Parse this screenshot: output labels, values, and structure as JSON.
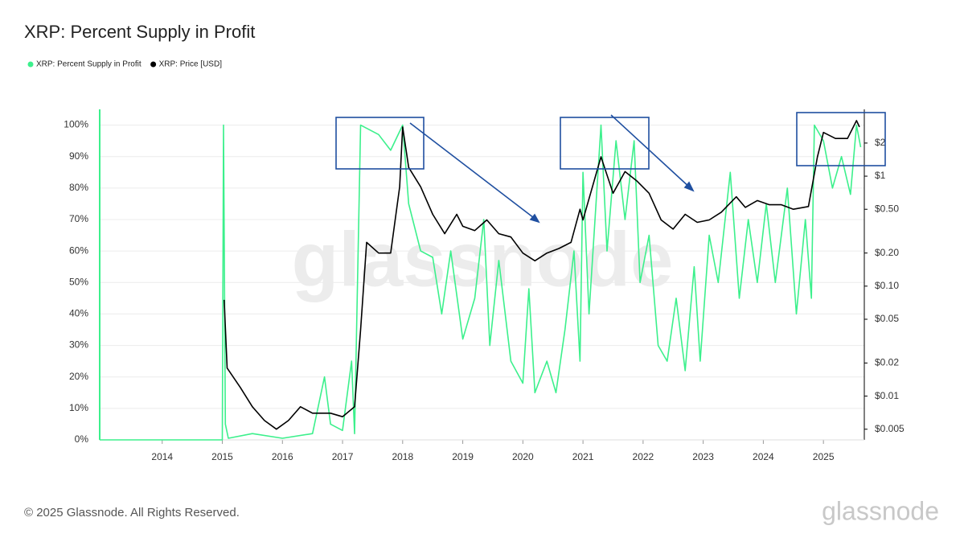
{
  "chart_data": {
    "type": "line",
    "title": "XRP: Percent Supply in Profit",
    "watermark": "glassnode",
    "footer": "© 2025 Glassnode. All Rights Reserved.",
    "logo": "glassnode",
    "legend": "top-left",
    "grid": true,
    "xlim": [
      2012.96,
      2025.68
    ],
    "xticks": [
      2014,
      2015,
      2016,
      2017,
      2018,
      2019,
      2020,
      2021,
      2022,
      2023,
      2024,
      2025
    ],
    "ylim": [
      0,
      105
    ],
    "yticks": [
      {
        "value": 0,
        "label": "0%"
      },
      {
        "value": 10,
        "label": "10%"
      },
      {
        "value": 20,
        "label": "20%"
      },
      {
        "value": 30,
        "label": "30%"
      },
      {
        "value": 40,
        "label": "40%"
      },
      {
        "value": 50,
        "label": "50%"
      },
      {
        "value": 60,
        "label": "60%"
      },
      {
        "value": 70,
        "label": "70%"
      },
      {
        "value": 80,
        "label": "80%"
      },
      {
        "value": 90,
        "label": "90%"
      },
      {
        "value": 100,
        "label": "100%"
      }
    ],
    "y2scale": "log",
    "y2lim": [
      0.004,
      4.05
    ],
    "y2ticks": [
      {
        "value": 0.005,
        "label": "$0.005"
      },
      {
        "value": 0.01,
        "label": "$0.01"
      },
      {
        "value": 0.02,
        "label": "$0.02"
      },
      {
        "value": 0.05,
        "label": "$0.05"
      },
      {
        "value": 0.1,
        "label": "$0.10"
      },
      {
        "value": 0.2,
        "label": "$0.20"
      },
      {
        "value": 0.5,
        "label": "$0.50"
      },
      {
        "value": 1,
        "label": "$1"
      },
      {
        "value": 2,
        "label": "$2"
      }
    ],
    "series": [
      {
        "name": "XRP: Percent Supply in Profit",
        "color": "#3cf08c",
        "x": [
          2012.96,
          2015.0,
          2015.02,
          2015.05,
          2015.1,
          2015.5,
          2016.0,
          2016.5,
          2016.7,
          2016.8,
          2017.0,
          2017.15,
          2017.2,
          2017.3,
          2017.6,
          2017.8,
          2018.0,
          2018.1,
          2018.3,
          2018.5,
          2018.65,
          2018.8,
          2019.0,
          2019.2,
          2019.35,
          2019.45,
          2019.6,
          2019.8,
          2020.0,
          2020.1,
          2020.2,
          2020.4,
          2020.55,
          2020.7,
          2020.85,
          2020.95,
          2021.0,
          2021.1,
          2021.3,
          2021.4,
          2021.55,
          2021.7,
          2021.85,
          2021.95,
          2022.1,
          2022.25,
          2022.4,
          2022.55,
          2022.7,
          2022.85,
          2022.95,
          2023.1,
          2023.25,
          2023.45,
          2023.6,
          2023.75,
          2023.9,
          2024.05,
          2024.2,
          2024.4,
          2024.55,
          2024.7,
          2024.8,
          2024.85,
          2025.0,
          2025.15,
          2025.3,
          2025.45,
          2025.55,
          2025.62
        ],
        "values": [
          0,
          0,
          100,
          5,
          0.5,
          2,
          0.5,
          2,
          20,
          5,
          3,
          25,
          2,
          100,
          97,
          92,
          100,
          75,
          60,
          58,
          40,
          60,
          32,
          45,
          70,
          30,
          57,
          25,
          18,
          48,
          15,
          25,
          15,
          35,
          60,
          25,
          85,
          40,
          100,
          60,
          95,
          70,
          95,
          50,
          65,
          30,
          25,
          45,
          22,
          55,
          25,
          65,
          50,
          85,
          45,
          70,
          50,
          75,
          50,
          80,
          40,
          70,
          45,
          100,
          95,
          80,
          90,
          78,
          100,
          93
        ]
      },
      {
        "name": "XRP: Price [USD]",
        "color": "#000000",
        "axis": "y2",
        "x": [
          2015.03,
          2015.08,
          2015.3,
          2015.5,
          2015.7,
          2015.9,
          2016.1,
          2016.3,
          2016.5,
          2016.8,
          2017.0,
          2017.2,
          2017.3,
          2017.4,
          2017.6,
          2017.8,
          2017.95,
          2018.0,
          2018.1,
          2018.3,
          2018.5,
          2018.7,
          2018.9,
          2019.0,
          2019.2,
          2019.4,
          2019.6,
          2019.8,
          2020.0,
          2020.2,
          2020.4,
          2020.6,
          2020.8,
          2020.95,
          2021.0,
          2021.3,
          2021.5,
          2021.7,
          2021.9,
          2022.1,
          2022.3,
          2022.5,
          2022.7,
          2022.9,
          2023.1,
          2023.3,
          2023.55,
          2023.7,
          2023.9,
          2024.1,
          2024.3,
          2024.5,
          2024.75,
          2024.9,
          2025.0,
          2025.2,
          2025.4,
          2025.55,
          2025.6
        ],
        "values": [
          0.075,
          0.018,
          0.012,
          0.008,
          0.006,
          0.005,
          0.006,
          0.008,
          0.007,
          0.007,
          0.0065,
          0.008,
          0.04,
          0.25,
          0.2,
          0.2,
          0.8,
          2.8,
          1.2,
          0.8,
          0.45,
          0.3,
          0.45,
          0.35,
          0.32,
          0.4,
          0.3,
          0.28,
          0.2,
          0.17,
          0.2,
          0.22,
          0.25,
          0.5,
          0.4,
          1.5,
          0.7,
          1.1,
          0.9,
          0.7,
          0.4,
          0.33,
          0.45,
          0.38,
          0.4,
          0.47,
          0.65,
          0.52,
          0.6,
          0.55,
          0.55,
          0.5,
          0.53,
          1.5,
          2.5,
          2.2,
          2.2,
          3.2,
          2.8
        ]
      }
    ]
  }
}
